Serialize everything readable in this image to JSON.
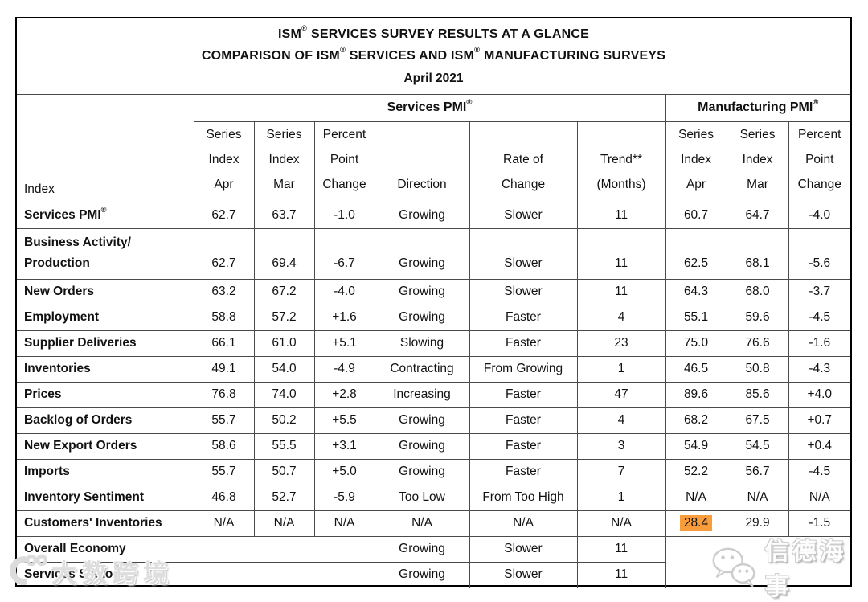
{
  "chart_data": {
    "type": "table",
    "title": "ISM® SERVICES SURVEY RESULTS AT A GLANCE",
    "subtitle": "COMPARISON OF ISM® SERVICES AND ISM® MANUFACTURING SURVEYS",
    "period": "April 2021",
    "index_header": "Index",
    "column_groups": [
      {
        "label": "Services PMI®",
        "span": 6
      },
      {
        "label": "Manufacturing PMI®",
        "span": 3
      }
    ],
    "columns": [
      {
        "id": "svc-series-index-apr",
        "lines": [
          "Series",
          "Index",
          "Apr"
        ]
      },
      {
        "id": "svc-series-index-mar",
        "lines": [
          "Series",
          "Index",
          "Mar"
        ]
      },
      {
        "id": "svc-percent-point-change",
        "lines": [
          "Percent",
          "Point",
          "Change"
        ]
      },
      {
        "id": "direction",
        "lines": [
          "Direction"
        ]
      },
      {
        "id": "rate-of-change",
        "lines": [
          "Rate of",
          "Change"
        ]
      },
      {
        "id": "trend-months",
        "lines": [
          "Trend**",
          "(Months)"
        ]
      },
      {
        "id": "mfg-series-index-apr",
        "lines": [
          "Series",
          "Index",
          "Apr"
        ]
      },
      {
        "id": "mfg-series-index-mar",
        "lines": [
          "Series",
          "Index",
          "Mar"
        ]
      },
      {
        "id": "mfg-percent-point-change",
        "lines": [
          "Percent",
          "Point",
          "Change"
        ]
      }
    ],
    "rows": [
      {
        "label": "Services PMI®",
        "cells": [
          "62.7",
          "63.7",
          "-1.0",
          "Growing",
          "Slower",
          "11",
          "60.7",
          "64.7",
          "-4.0"
        ]
      },
      {
        "label": "Business Activity/\nProduction",
        "tall": true,
        "cells": [
          "62.7",
          "69.4",
          "-6.7",
          "Growing",
          "Slower",
          "11",
          "62.5",
          "68.1",
          "-5.6"
        ]
      },
      {
        "label": "New Orders",
        "cells": [
          "63.2",
          "67.2",
          "-4.0",
          "Growing",
          "Slower",
          "11",
          "64.3",
          "68.0",
          "-3.7"
        ]
      },
      {
        "label": "Employment",
        "cells": [
          "58.8",
          "57.2",
          "+1.6",
          "Growing",
          "Faster",
          "4",
          "55.1",
          "59.6",
          "-4.5"
        ]
      },
      {
        "label": "Supplier Deliveries",
        "cells": [
          "66.1",
          "61.0",
          "+5.1",
          "Slowing",
          "Faster",
          "23",
          "75.0",
          "76.6",
          "-1.6"
        ]
      },
      {
        "label": "Inventories",
        "cells": [
          "49.1",
          "54.0",
          "-4.9",
          "Contracting",
          "From Growing",
          "1",
          "46.5",
          "50.8",
          "-4.3"
        ]
      },
      {
        "label": "Prices",
        "cells": [
          "76.8",
          "74.0",
          "+2.8",
          "Increasing",
          "Faster",
          "47",
          "89.6",
          "85.6",
          "+4.0"
        ]
      },
      {
        "label": "Backlog of Orders",
        "cells": [
          "55.7",
          "50.2",
          "+5.5",
          "Growing",
          "Faster",
          "4",
          "68.2",
          "67.5",
          "+0.7"
        ]
      },
      {
        "label": "New Export Orders",
        "cells": [
          "58.6",
          "55.5",
          "+3.1",
          "Growing",
          "Faster",
          "3",
          "54.9",
          "54.5",
          "+0.4"
        ]
      },
      {
        "label": "Imports",
        "cells": [
          "55.7",
          "50.7",
          "+5.0",
          "Growing",
          "Faster",
          "7",
          "52.2",
          "56.7",
          "-4.5"
        ]
      },
      {
        "label": "Inventory Sentiment",
        "cells": [
          "46.8",
          "52.7",
          "-5.9",
          "Too Low",
          "From Too High",
          "1",
          "N/A",
          "N/A",
          "N/A"
        ]
      },
      {
        "label": "Customers' Inventories",
        "cells": [
          "N/A",
          "N/A",
          "N/A",
          "N/A",
          "N/A",
          "N/A",
          "28.4",
          "29.9",
          "-1.5"
        ]
      }
    ],
    "summary_rows": [
      {
        "label": "Overall Economy",
        "cells": [
          "Growing",
          "Slower",
          "11"
        ]
      },
      {
        "label": "Services Sector",
        "cells": [
          "Growing",
          "Slower",
          "11"
        ]
      }
    ],
    "highlight": {
      "row_label": "Customers' Inventories",
      "column": "mfg-series-index-apr",
      "cell_index": 6,
      "value": "28.4",
      "color": "#F89C3C"
    }
  },
  "watermarks": {
    "bottom_left_icon": "compass-degree-logo-icon",
    "bottom_left_text": "大数跨境",
    "bottom_right_icon": "wechat-icon",
    "bottom_right_text": "信德海事"
  }
}
